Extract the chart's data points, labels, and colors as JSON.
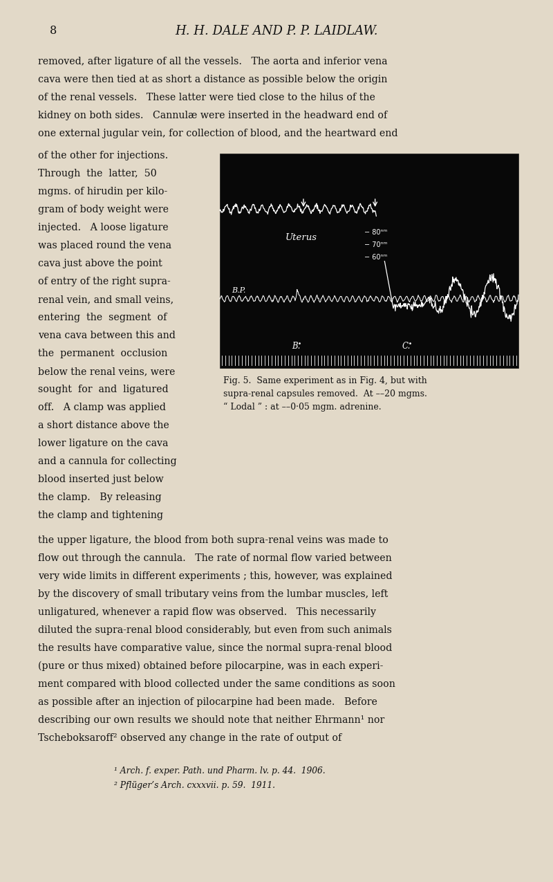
{
  "page_bg": "#e2d9c8",
  "page_number": "8",
  "header": "H. H. DALE AND P. P. LAIDLAW.",
  "body_text_lines": [
    "removed, after ligature of all the vessels.   The aorta and inferior vena",
    "cava were then tied at as short a distance as possible below the origin",
    "of the renal vessels.   These latter were tied close to the hilus of the",
    "kidney on both sides.   Cannulæ were inserted in the headward end of",
    "one external jugular vein, for collection of blood, and the heartward end"
  ],
  "left_col_lines": [
    "of the other for injections.",
    "Through  the  latter,  50",
    "mgms. of hirudin per kilo-",
    "gram of body weight were",
    "injected.   A loose ligature",
    "was placed round the vena",
    "cava just above the point",
    "of entry of the right supra-",
    "renal vein, and small veins,",
    "entering  the  segment  of",
    "vena cava between this and",
    "the  permanent  occlusion",
    "below the renal veins, were",
    "sought  for  and  ligatured",
    "off.   A clamp was applied",
    "a short distance above the",
    "lower ligature on the cava",
    "and a cannula for collecting",
    "blood inserted just below",
    "the clamp.   By releasing",
    "the clamp and tightening"
  ],
  "full_text_lines": [
    "the upper ligature, the blood from both supra-renal veins was made to",
    "flow out through the cannula.   The rate of normal flow varied between",
    "very wide limits in different experiments ; this, however, was explained",
    "by the discovery of small tributary veins from the lumbar muscles, left",
    "unligatured, whenever a rapid flow was observed.   This necessarily",
    "diluted the supra-renal blood considerably, but even from such animals",
    "the results have comparative value, since the normal supra-renal blood",
    "(pure or thus mixed) obtained before pilocarpine, was in each experi-",
    "ment compared with blood collected under the same conditions as soon",
    "as possible after an injection of pilocarpine had been made.   Before",
    "describing our own results we should note that neither Ehrmann¹ nor",
    "Tscheboksaroff² observed any change in the rate of output of"
  ],
  "fig_caption_lines": [
    "Fig. 5.  Same experiment as in Fig. 4, but with",
    "supra-renal capsules removed.  At ––20 mgms.",
    "“ Lodal ” : at ––0·05 mgm. adrenine."
  ],
  "footnote1": "¹ Arch. f. exper. Path. und Pharm. lv. p. 44.  1906.",
  "footnote2": "² Pflüger’s Arch. cxxxvii. p. 59.  1911."
}
